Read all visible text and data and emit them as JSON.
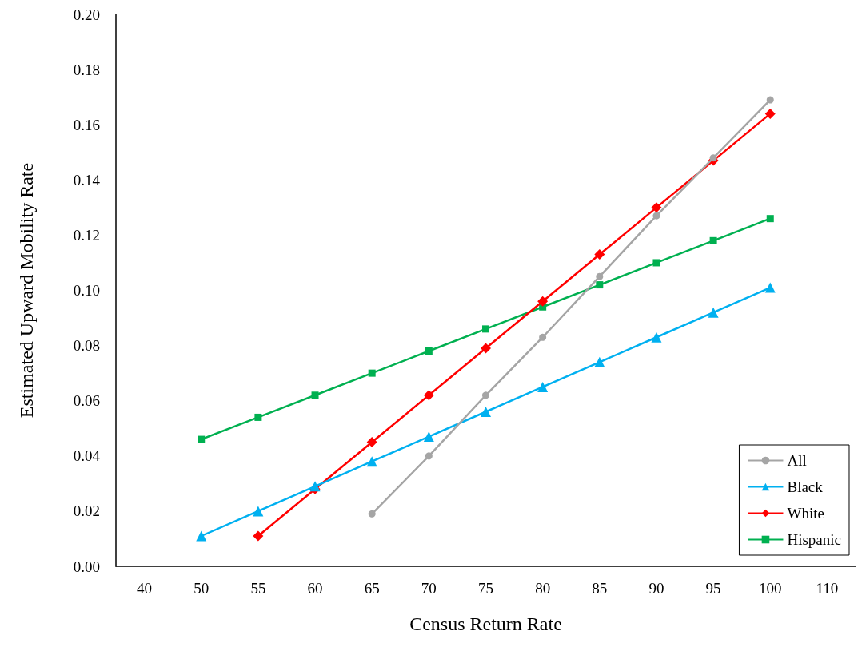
{
  "chart_data": {
    "type": "line",
    "xlabel": "Census Return Rate",
    "ylabel": "Estimated Upward Mobility Rate",
    "categories": [
      "40",
      "50",
      "55",
      "60",
      "65",
      "70",
      "75",
      "80",
      "85",
      "90",
      "95",
      "100",
      "110"
    ],
    "series": [
      {
        "name": "All",
        "color": "#a5a5a5",
        "marker": "circle",
        "values": [
          null,
          null,
          null,
          null,
          0.019,
          0.04,
          0.062,
          0.083,
          0.105,
          0.127,
          0.148,
          0.169,
          null
        ]
      },
      {
        "name": "Black",
        "color": "#00b0f0",
        "marker": "triangle",
        "values": [
          null,
          0.011,
          0.02,
          0.029,
          0.038,
          0.047,
          0.056,
          0.065,
          0.074,
          0.083,
          0.092,
          0.101,
          null
        ]
      },
      {
        "name": "White",
        "color": "#ff0000",
        "marker": "diamond",
        "values": [
          null,
          null,
          0.011,
          0.028,
          0.045,
          0.062,
          0.079,
          0.096,
          0.113,
          0.13,
          0.147,
          0.164,
          null
        ]
      },
      {
        "name": "Hispanic",
        "color": "#00b050",
        "marker": "square",
        "values": [
          null,
          0.046,
          0.054,
          0.062,
          0.07,
          0.078,
          0.086,
          0.094,
          0.102,
          0.11,
          0.118,
          0.126,
          null
        ]
      }
    ],
    "ylim": [
      0,
      0.2
    ],
    "yticks": [
      {
        "value": 0,
        "label": "0.00"
      },
      {
        "value": 0.02,
        "label": "0.02"
      },
      {
        "value": 0.04,
        "label": "0.04"
      },
      {
        "value": 0.06,
        "label": "0.06"
      },
      {
        "value": 0.08,
        "label": "0.08"
      },
      {
        "value": 0.1,
        "label": "0.10"
      },
      {
        "value": 0.12,
        "label": "0.12"
      },
      {
        "value": 0.14,
        "label": "0.14"
      },
      {
        "value": 0.16,
        "label": "0.16"
      },
      {
        "value": 0.18,
        "label": "0.18"
      },
      {
        "value": 0.2,
        "label": "0.20"
      }
    ],
    "grid": false,
    "legend": "bottom right"
  }
}
